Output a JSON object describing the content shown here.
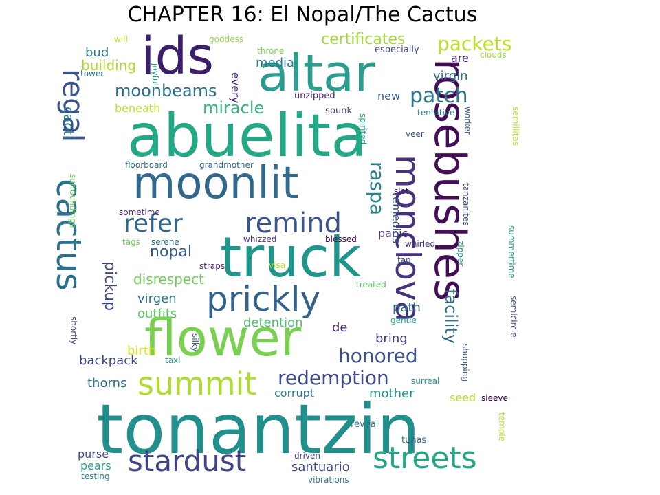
{
  "title": "CHAPTER 16: El Nopal/The Cactus",
  "words": [
    {
      "text": "tonantzin",
      "color": "#21908d"
    },
    {
      "text": "abuelita",
      "color": "#22a884"
    },
    {
      "text": "altar",
      "color": "#2a9d8f"
    },
    {
      "text": "ids",
      "color": "#3b1f6d"
    },
    {
      "text": "moonlit",
      "color": "#31688e"
    },
    {
      "text": "truck",
      "color": "#1f968b"
    },
    {
      "text": "flower",
      "color": "#7ad151"
    },
    {
      "text": "rosebushes",
      "color": "#440f57"
    },
    {
      "text": "monclova",
      "color": "#46327e"
    },
    {
      "text": "cactus",
      "color": "#2c728e"
    },
    {
      "text": "prickly",
      "color": "#33638d"
    },
    {
      "text": "regal",
      "color": "#3b528b"
    },
    {
      "text": "summit",
      "color": "#addc30"
    },
    {
      "text": "stardust",
      "color": "#414487"
    },
    {
      "text": "streets",
      "color": "#22a884"
    },
    {
      "text": "remind",
      "color": "#3a548c"
    },
    {
      "text": "refer",
      "color": "#31688e"
    },
    {
      "text": "patch",
      "color": "#2a788e"
    },
    {
      "text": "packets",
      "color": "#bddf26"
    },
    {
      "text": "raspa",
      "color": "#26828e"
    },
    {
      "text": "facility",
      "color": "#2f6c8e"
    },
    {
      "text": "redemption",
      "color": "#3e4a89"
    },
    {
      "text": "honored",
      "color": "#3b528b"
    },
    {
      "text": "miracle",
      "color": "#35b779"
    },
    {
      "text": "moonbeams",
      "color": "#2d708e"
    },
    {
      "text": "pickup",
      "color": "#3e4989"
    },
    {
      "text": "nopal",
      "color": "#365c8d"
    },
    {
      "text": "certificates",
      "color": "#a0da39"
    },
    {
      "text": "disrespect",
      "color": "#6ece58"
    },
    {
      "text": "virgen",
      "color": "#2a788e"
    },
    {
      "text": "outfits",
      "color": "#5ec962"
    },
    {
      "text": "detention",
      "color": "#4ac16d"
    },
    {
      "text": "birth",
      "color": "#d8e219"
    },
    {
      "text": "backpack",
      "color": "#3e4989"
    },
    {
      "text": "thorns",
      "color": "#2d708e"
    },
    {
      "text": "corrupt",
      "color": "#2a788e"
    },
    {
      "text": "mother",
      "color": "#21918c"
    },
    {
      "text": "bring",
      "color": "#443983"
    },
    {
      "text": "seed",
      "color": "#b5de2b"
    },
    {
      "text": "santuario",
      "color": "#3e4989"
    },
    {
      "text": "purse",
      "color": "#404688"
    },
    {
      "text": "pears",
      "color": "#1fa187"
    },
    {
      "text": "cacti",
      "color": "#26828e"
    },
    {
      "text": "beneath",
      "color": "#b5de2b"
    },
    {
      "text": "building",
      "color": "#addc30"
    },
    {
      "text": "bud",
      "color": "#2a788e"
    },
    {
      "text": "media",
      "color": "#2a788e"
    },
    {
      "text": "every",
      "color": "#482878"
    },
    {
      "text": "are",
      "color": "#3b1f6d"
    },
    {
      "text": "virgin",
      "color": "#2c728e"
    },
    {
      "text": "new",
      "color": "#365c8d"
    },
    {
      "text": "panic",
      "color": "#472d7b"
    },
    {
      "text": "path",
      "color": "#2d708e"
    },
    {
      "text": "remedios",
      "color": "#3b528b"
    },
    {
      "text": "de",
      "color": "#482475"
    },
    {
      "text": "especially",
      "color": "#3e4989"
    },
    {
      "text": "unzipped",
      "color": "#482475"
    },
    {
      "text": "spunk",
      "color": "#443983"
    },
    {
      "text": "floorboard",
      "color": "#2c728e"
    },
    {
      "text": "grandmother",
      "color": "#31688e"
    },
    {
      "text": "tentative",
      "color": "#2a788e"
    },
    {
      "text": "veer",
      "color": "#3b528b"
    },
    {
      "text": "slot",
      "color": "#482475"
    },
    {
      "text": "whirled",
      "color": "#46327e"
    },
    {
      "text": "tan",
      "color": "#3b528b"
    },
    {
      "text": "blessed",
      "color": "#440154"
    },
    {
      "text": "whizzed",
      "color": "#46327e"
    },
    {
      "text": "tags",
      "color": "#6ece58"
    },
    {
      "text": "serene",
      "color": "#2c728e"
    },
    {
      "text": "sometime",
      "color": "#482878"
    },
    {
      "text": "straps",
      "color": "#482878"
    },
    {
      "text": "visa",
      "color": "#c8e020"
    },
    {
      "text": "treated",
      "color": "#5ec962"
    },
    {
      "text": "gentle",
      "color": "#22a884"
    },
    {
      "text": "surreal",
      "color": "#21918c"
    },
    {
      "text": "sleeve",
      "color": "#440154"
    },
    {
      "text": "reveal",
      "color": "#2c728e"
    },
    {
      "text": "tunas",
      "color": "#31688e"
    },
    {
      "text": "driven",
      "color": "#414487"
    },
    {
      "text": "vibrations",
      "color": "#2c728e"
    },
    {
      "text": "testing",
      "color": "#2a788e"
    },
    {
      "text": "taxi",
      "color": "#1f9e89"
    },
    {
      "text": "silky",
      "color": "#365c8d"
    },
    {
      "text": "shortly",
      "color": "#3e4989"
    },
    {
      "text": "goddess",
      "color": "#8fd744"
    },
    {
      "text": "will",
      "color": "#b5de2b"
    },
    {
      "text": "throne",
      "color": "#7ad151"
    },
    {
      "text": "joyful",
      "color": "#1f9e89"
    },
    {
      "text": "tower",
      "color": "#2a788e"
    },
    {
      "text": "clouds",
      "color": "#a0da39"
    },
    {
      "text": "worker",
      "color": "#3b528b"
    },
    {
      "text": "spirited",
      "color": "#1fa187"
    },
    {
      "text": "semillitas",
      "color": "#c2df23"
    },
    {
      "text": "tanzanites",
      "color": "#3e4989"
    },
    {
      "text": "zipper",
      "color": "#21918c"
    },
    {
      "text": "summertime",
      "color": "#20a486"
    },
    {
      "text": "semicircle",
      "color": "#3e4989"
    },
    {
      "text": "shopping",
      "color": "#3b528b"
    },
    {
      "text": "temple",
      "color": "#b5de2b"
    },
    {
      "text": "surroundings",
      "color": "#6ece58"
    }
  ]
}
